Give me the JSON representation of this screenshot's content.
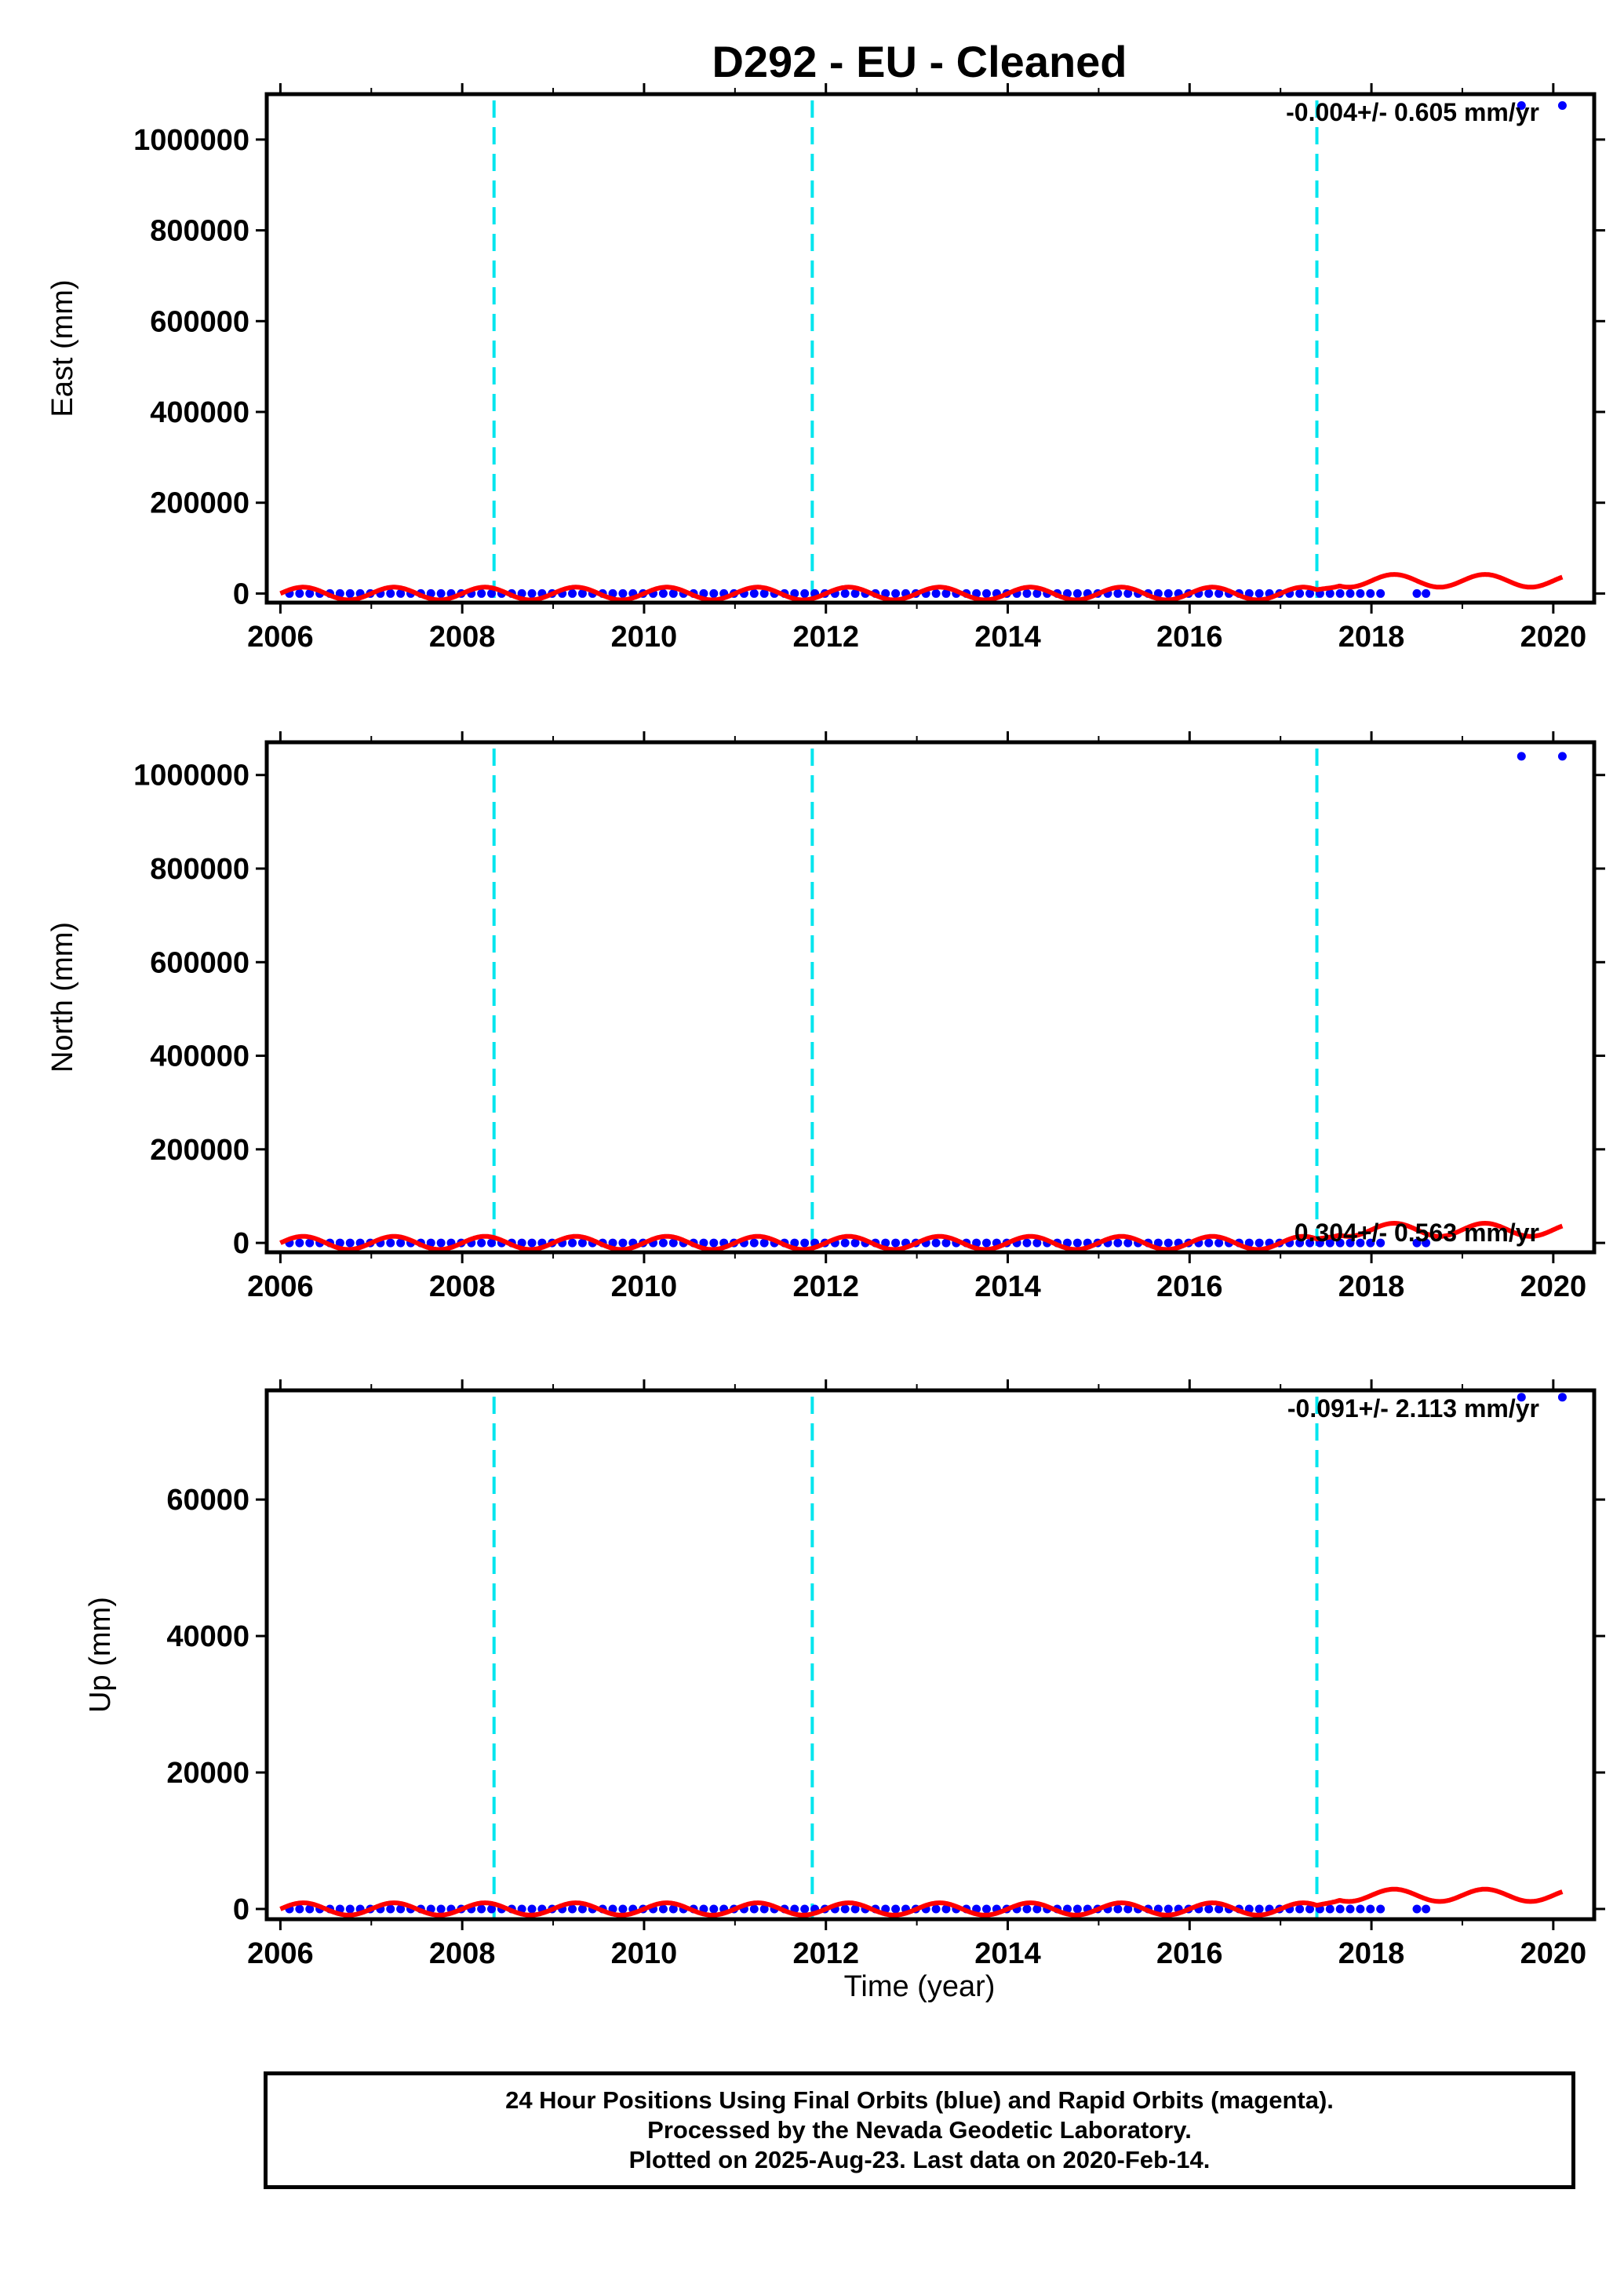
{
  "title": "D292  - EU - Cleaned",
  "colors": {
    "data_points": "#0000ff",
    "model_curve": "#ff0000",
    "event_lines": "#00e5ee",
    "frame": "#000000"
  },
  "xlabel": "Time (year)",
  "footer": {
    "line1": "24 Hour Positions Using Final Orbits (blue) and Rapid Orbits (magenta).",
    "line2": "Processed by the Nevada Geodetic Laboratory.",
    "line3": "Plotted on 2025-Aug-23. Last data on 2020-Feb-14."
  },
  "chart_data": [
    {
      "type": "scatter",
      "ylabel": "East (mm)",
      "rate_text": "-0.004+/- 0.605 mm/yr",
      "xlim": [
        2005.85,
        2020.45
      ],
      "ylim": [
        -20000,
        1100000
      ],
      "xticks": [
        2006,
        2008,
        2010,
        2012,
        2014,
        2016,
        2018,
        2020
      ],
      "yticks": [
        0,
        200000,
        400000,
        600000,
        800000,
        1000000
      ],
      "event_lines_x": [
        2008.35,
        2011.85,
        2017.4
      ],
      "points": {
        "regular_range": [
          2006.1,
          2018.1
        ],
        "regular_y": 0,
        "extra": [
          [
            2018.5,
            0
          ],
          [
            2018.6,
            0
          ],
          [
            2019.65,
            1075000
          ],
          [
            2020.1,
            1075000
          ]
        ]
      },
      "model": {
        "range": [
          2006.0,
          2020.1
        ],
        "amplitude": 14000,
        "period_years": 1.0,
        "offset_after_last_event": 28000
      }
    },
    {
      "type": "scatter",
      "ylabel": "North (mm)",
      "rate_text": "0.304+/- 0.563 mm/yr",
      "xlim": [
        2005.85,
        2020.45
      ],
      "ylim": [
        -20000,
        1070000
      ],
      "xticks": [
        2006,
        2008,
        2010,
        2012,
        2014,
        2016,
        2018,
        2020
      ],
      "yticks": [
        0,
        200000,
        400000,
        600000,
        800000,
        1000000
      ],
      "event_lines_x": [
        2008.35,
        2011.85,
        2017.4
      ],
      "points": {
        "regular_range": [
          2006.1,
          2018.1
        ],
        "regular_y": 0,
        "extra": [
          [
            2018.5,
            0
          ],
          [
            2018.6,
            0
          ],
          [
            2019.65,
            1040000
          ],
          [
            2020.1,
            1040000
          ]
        ]
      },
      "model": {
        "range": [
          2006.0,
          2020.1
        ],
        "amplitude": 14000,
        "period_years": 1.0,
        "offset_after_last_event": 28000
      }
    },
    {
      "type": "scatter",
      "ylabel": "Up (mm)",
      "rate_text": "-0.091+/- 2.113 mm/yr",
      "xlim": [
        2005.85,
        2020.45
      ],
      "ylim": [
        -1500,
        76000
      ],
      "xticks": [
        2006,
        2008,
        2010,
        2012,
        2014,
        2016,
        2018,
        2020
      ],
      "yticks": [
        0,
        20000,
        40000,
        60000
      ],
      "event_lines_x": [
        2008.35,
        2011.85,
        2017.4
      ],
      "points": {
        "regular_range": [
          2006.1,
          2018.1
        ],
        "regular_y": 0,
        "extra": [
          [
            2018.5,
            0
          ],
          [
            2018.6,
            0
          ],
          [
            2019.65,
            75000
          ],
          [
            2020.1,
            75000
          ]
        ]
      },
      "model": {
        "range": [
          2006.0,
          2020.1
        ],
        "amplitude": 900,
        "period_years": 1.0,
        "offset_after_last_event": 2000
      }
    }
  ]
}
